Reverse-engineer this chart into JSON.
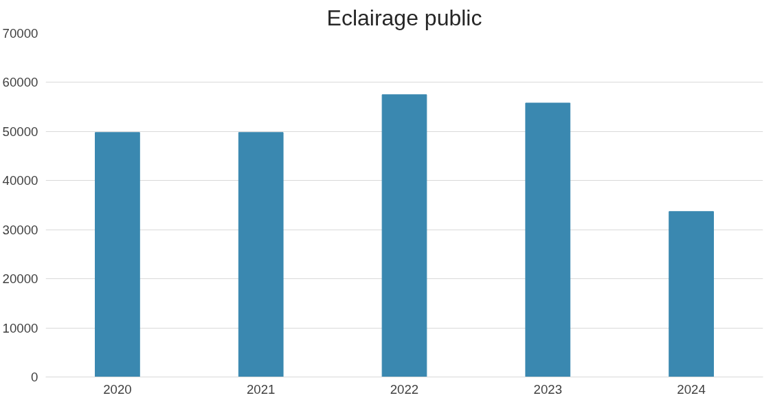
{
  "chart_data": {
    "type": "bar",
    "title": "Eclairage public",
    "categories": [
      "2020",
      "2021",
      "2022",
      "2023",
      "2024"
    ],
    "values": [
      49800,
      49800,
      57500,
      55800,
      33700
    ],
    "color": "#3a88b0",
    "ylim": [
      0,
      70000
    ],
    "yticks": [
      0,
      10000,
      20000,
      30000,
      40000,
      50000,
      60000,
      70000
    ],
    "grid": "y"
  }
}
